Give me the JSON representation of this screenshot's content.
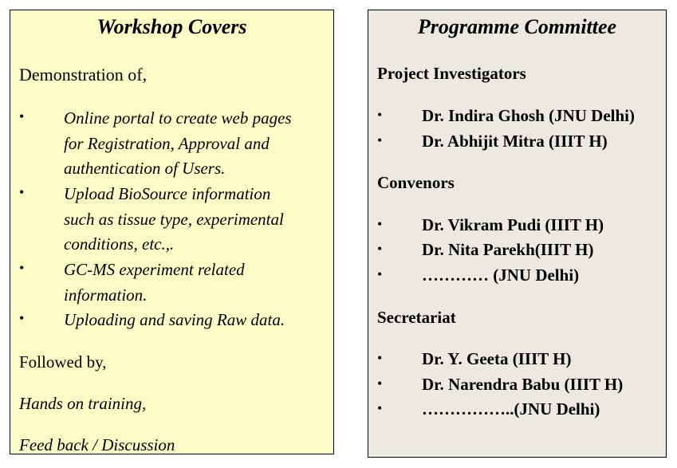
{
  "left_panel": {
    "title": "Workshop Covers",
    "intro": "Demonstration of,",
    "items": [
      {
        "lines": [
          "Online portal to create web pages",
          "for Registration, Approval and",
          "authentication of Users."
        ]
      },
      {
        "lines": [
          "Upload BioSource information",
          "such as tissue type, experimental",
          "conditions, etc.,."
        ]
      },
      {
        "lines": [
          "GC-MS experiment  related",
          "information."
        ]
      },
      {
        "lines": [
          "Uploading and saving Raw data."
        ]
      }
    ],
    "followed": "Followed by,",
    "hands_on": "Hands on training,",
    "feedback": "Feed back / Discussion"
  },
  "right_panel": {
    "title": "Programme Committee",
    "sections": [
      {
        "heading": "Project Investigators",
        "members": [
          "Dr. Indira Ghosh (JNU Delhi)",
          "Dr. Abhijit Mitra (IIIT H)"
        ]
      },
      {
        "heading": "Convenors",
        "members": [
          "Dr. Vikram Pudi (IIIT H)",
          "Dr. Nita Parekh(IIIT H)",
          "…………     (JNU Delhi)"
        ]
      },
      {
        "heading": "Secretariat",
        "members": [
          "Dr. Y. Geeta (IIIT H)",
          "Dr. Narendra Babu (IIIT H)",
          "……………..(JNU Delhi)"
        ]
      }
    ]
  },
  "bullet_glyph": "•"
}
